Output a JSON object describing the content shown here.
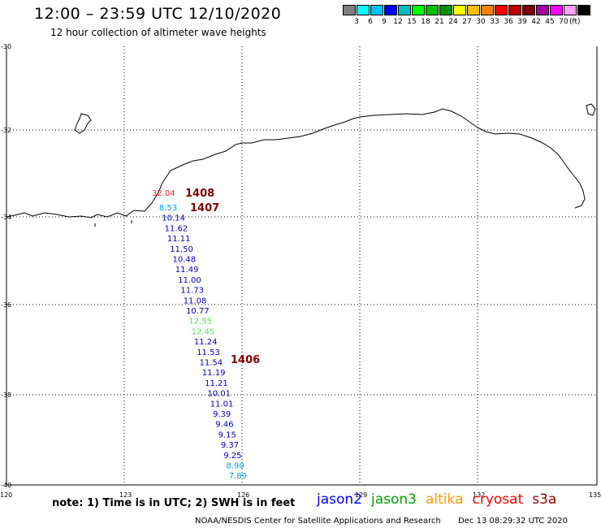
{
  "header": {
    "title": "12:00 – 23:59 UTC 12/10/2020",
    "subtitle": "12 hour collection of altimeter wave heights"
  },
  "color_scale": {
    "colors": [
      "#808080",
      "#00ffff",
      "#00bfff",
      "#0000ff",
      "#00bfbf",
      "#00ff00",
      "#00bf00",
      "#009000",
      "#ffff00",
      "#ffbf00",
      "#ff8000",
      "#ff0000",
      "#bf0000",
      "#800000",
      "#a000a0",
      "#ff00ff",
      "#ffa0ff",
      "#000000"
    ],
    "labels": [
      "3",
      "6",
      "9",
      "12",
      "15",
      "18",
      "21",
      "24",
      "27",
      "30",
      "33",
      "36",
      "39",
      "42",
      "45",
      "70"
    ],
    "unit": "(ft)"
  },
  "axes": {
    "lat_labels": [
      "-30",
      "-32",
      "-34",
      "-36",
      "-38",
      "-40"
    ],
    "lon_labels": [
      "120",
      "123",
      "126",
      "129",
      "132",
      "135"
    ]
  },
  "track_times": [
    "1408",
    "1407",
    "1406"
  ],
  "wave_heights": [
    {
      "value": "32.04",
      "color": "#ff2020"
    },
    {
      "value": "8.53",
      "color": "#00a0ff"
    },
    {
      "value": "10.14",
      "color": "#0000c0"
    },
    {
      "value": "11.62",
      "color": "#0000c0"
    },
    {
      "value": "11.11",
      "color": "#0000c0"
    },
    {
      "value": "11.50",
      "color": "#0000c0"
    },
    {
      "value": "10.48",
      "color": "#0000c0"
    },
    {
      "value": "11.49",
      "color": "#0000c0"
    },
    {
      "value": "11.00",
      "color": "#0000c0"
    },
    {
      "value": "11.73",
      "color": "#0000c0"
    },
    {
      "value": "11.08",
      "color": "#0000c0"
    },
    {
      "value": "10.77",
      "color": "#0000c0"
    },
    {
      "value": "12.55",
      "color": "#60e060"
    },
    {
      "value": "12.45",
      "color": "#60e060"
    },
    {
      "value": "11.24",
      "color": "#0000c0"
    },
    {
      "value": "11.53",
      "color": "#0000c0"
    },
    {
      "value": "11.54",
      "color": "#0000c0"
    },
    {
      "value": "11.19",
      "color": "#0000c0"
    },
    {
      "value": "11.21",
      "color": "#0000c0"
    },
    {
      "value": "10.01",
      "color": "#0000c0"
    },
    {
      "value": "11.01",
      "color": "#0000c0"
    },
    {
      "value": "9.39",
      "color": "#0000c0"
    },
    {
      "value": "9.46",
      "color": "#0000c0"
    },
    {
      "value": "9.15",
      "color": "#0000c0"
    },
    {
      "value": "9.37",
      "color": "#0000c0"
    },
    {
      "value": "9.25",
      "color": "#0000c0"
    },
    {
      "value": "8.90",
      "color": "#00a0e0"
    },
    {
      "value": "7.89",
      "color": "#00a0e0"
    }
  ],
  "note": "note:  1) Time is in UTC;  2) SWH is in feet",
  "satellites": [
    {
      "name": "jason2",
      "color": "#0000ff"
    },
    {
      "name": "jason3",
      "color": "#00a000"
    },
    {
      "name": "altika",
      "color": "#ff9900"
    },
    {
      "name": "cryosat",
      "color": "#ff0000"
    },
    {
      "name": "s3a",
      "color": "#a00000"
    }
  ],
  "footer": {
    "credit": "NOAA/NESDIS Center for Satellite Applications and Research",
    "timestamp": "Dec 13 08:29:32 UTC 2020"
  }
}
